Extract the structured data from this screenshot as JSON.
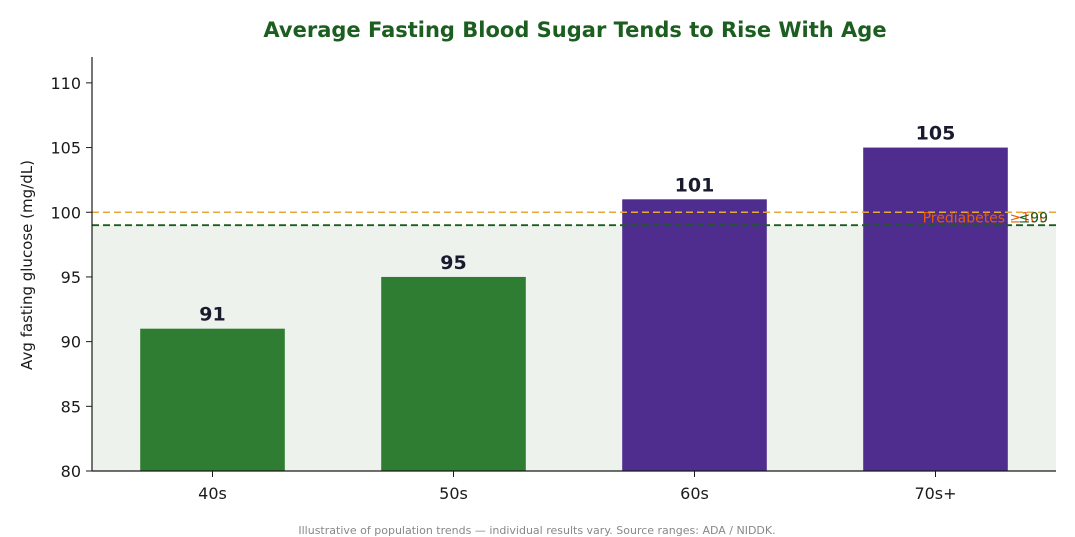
{
  "chart_data": {
    "type": "bar",
    "title": "Average Fasting Blood Sugar Tends to Rise With Age",
    "xlabel": "",
    "ylabel": "Avg fasting glucose (mg/dL)",
    "categories": [
      "40s",
      "50s",
      "60s",
      "70s+"
    ],
    "values": [
      91,
      95,
      101,
      105
    ],
    "data_labels": [
      "91",
      "95",
      "101",
      "105"
    ],
    "bar_colors": [
      "#2e7d32",
      "#2e7d32",
      "#4e2d8f",
      "#4e2d8f"
    ],
    "ylim": [
      80,
      112
    ],
    "yticks": [
      80,
      85,
      90,
      95,
      100,
      105,
      110
    ],
    "normal_band": {
      "from": 80,
      "to": 99,
      "color": "#edf2ed"
    },
    "reference_lines": [
      {
        "value": 100,
        "color": "#e8a838",
        "label": "Prediabetes ≥100",
        "label_color": "#e65c00"
      },
      {
        "value": 99,
        "color": "#1b5e20",
        "label": "≤99",
        "label_color": "#1b5e20"
      }
    ],
    "grid": false,
    "legend": "none"
  },
  "footnote": "Illustrative of population trends — individual results vary. Source ranges: ADA / NIDDK."
}
